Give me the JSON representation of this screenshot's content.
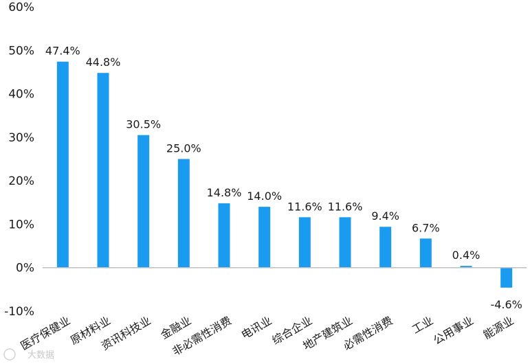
{
  "chart_data": {
    "type": "bar",
    "categories": [
      "医疗保健业",
      "原材料业",
      "资讯科技业",
      "金融业",
      "非必需性消费",
      "电讯业",
      "综合企业",
      "地产建筑业",
      "必需性消费",
      "工业",
      "公用事业",
      "能源业"
    ],
    "values": [
      47.4,
      44.8,
      30.5,
      25.0,
      14.8,
      14.0,
      11.6,
      11.6,
      9.4,
      6.7,
      0.4,
      -4.6
    ],
    "data_labels": [
      "47.4%",
      "44.8%",
      "30.5%",
      "25.0%",
      "14.8%",
      "14.0%",
      "11.6%",
      "11.6%",
      "9.4%",
      "6.7%",
      "0.4%",
      "-4.6%"
    ],
    "y_ticks": [
      60,
      50,
      40,
      30,
      20,
      10,
      0,
      -10
    ],
    "y_tick_labels": [
      "60%",
      "50%",
      "40%",
      "30%",
      "20%",
      "10%",
      "0%",
      "-10%"
    ],
    "ylim": [
      -10,
      60
    ],
    "grid": false,
    "bar_color": "#1a9bf0",
    "axis_color": "#bfbfbf",
    "title": "",
    "xlabel": "",
    "ylabel": ""
  },
  "watermark": {
    "text": "大数据"
  }
}
